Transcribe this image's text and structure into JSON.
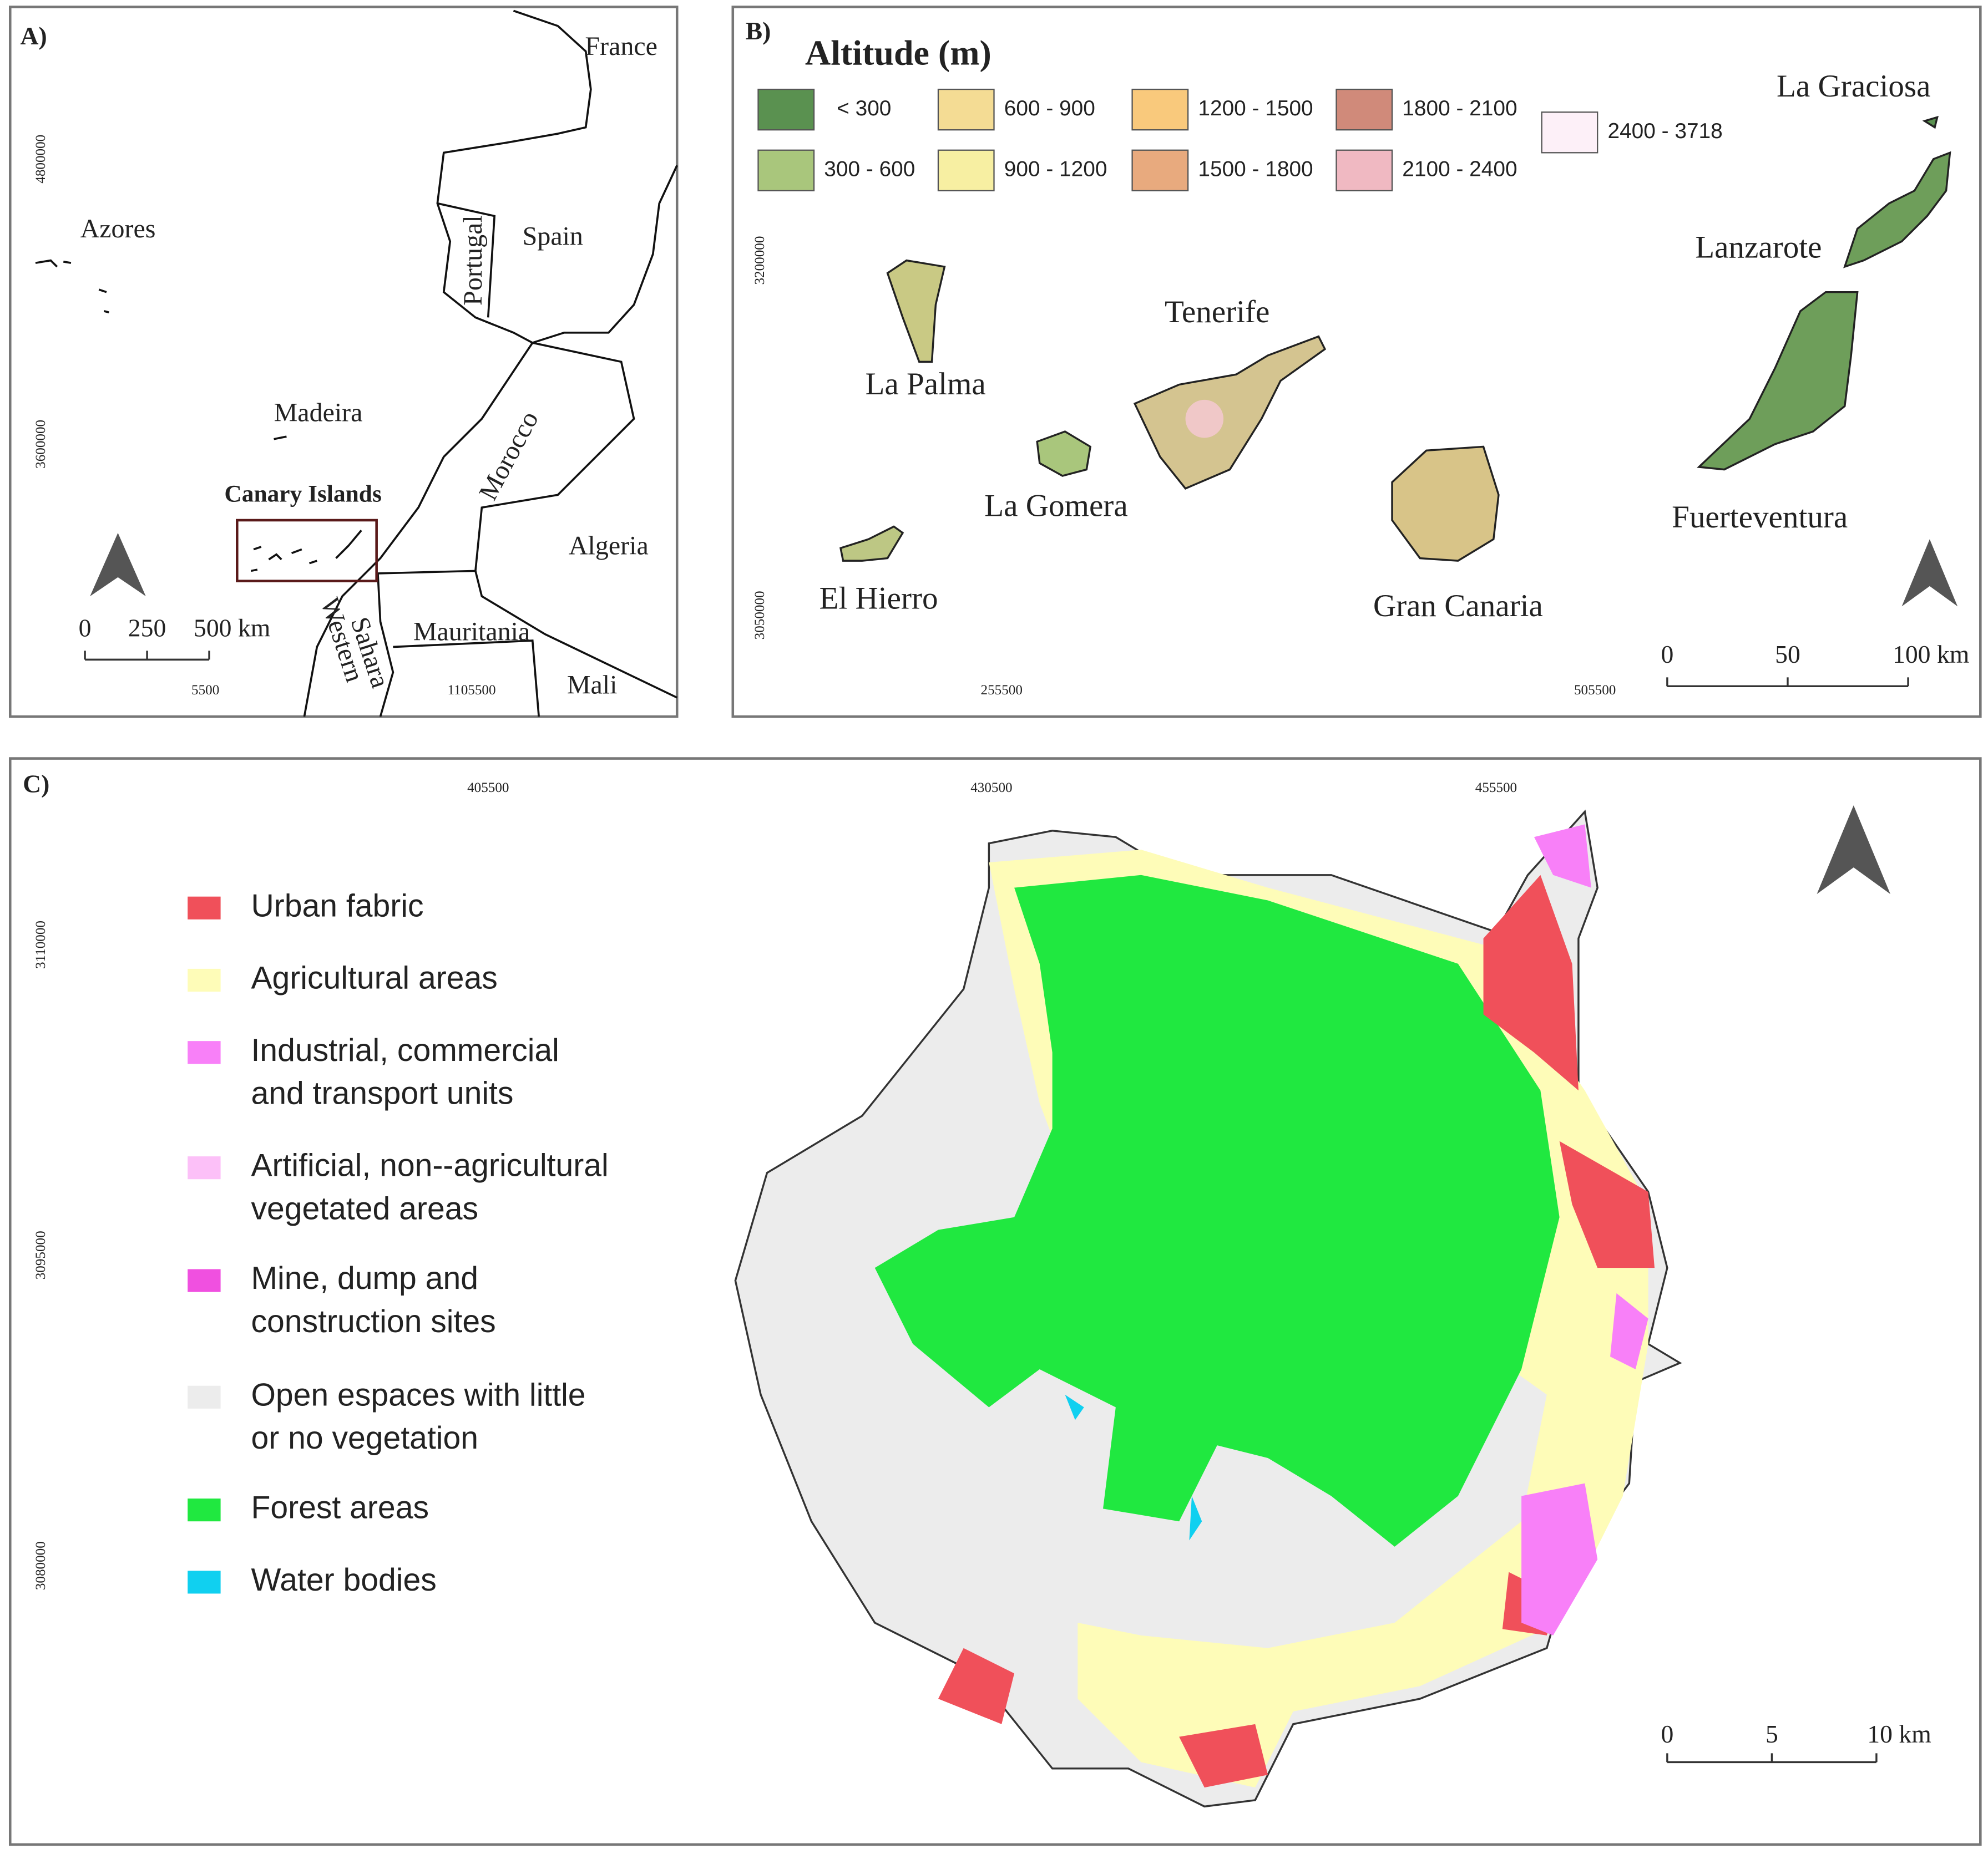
{
  "panel_a": {
    "label": "A)",
    "places": [
      "France",
      "Azores",
      "Spain",
      "Portugal",
      "Madeira",
      "Canary Islands",
      "Morocco",
      "Algeria",
      "Western",
      "Sahara",
      "Mauritania",
      "Mali"
    ],
    "coordinates": [
      "4800000",
      "3600000",
      "5500",
      "1105500"
    ],
    "scale": [
      "0",
      "250",
      "500 km"
    ]
  },
  "panel_b": {
    "label": "B)",
    "legend_title": "Altitude (m)",
    "legend": [
      {
        "label": "< 300",
        "color": "#5a9150"
      },
      {
        "label": "300 - 600",
        "color": "#a9c67c"
      },
      {
        "label": "600 - 900",
        "color": "#f4dc94"
      },
      {
        "label": "900 - 1200",
        "color": "#f7efa2"
      },
      {
        "label": "1200 - 1500",
        "color": "#f9c97c"
      },
      {
        "label": "1500 - 1800",
        "color": "#e8aa7e"
      },
      {
        "label": "1800 - 2100",
        "color": "#d08a7a"
      },
      {
        "label": "2100 - 2400",
        "color": "#f0b9c2"
      },
      {
        "label": "2400 - 3718",
        "color": "#fdf0f8"
      }
    ],
    "islands": [
      "La Graciosa",
      "Lanzarote",
      "Tenerife",
      "La Palma",
      "La Gomera",
      "Fuerteventura",
      "El Hierro",
      "Gran Canaria"
    ],
    "coordinates": [
      "3200000",
      "3050000",
      "255500",
      "505500"
    ],
    "scale": [
      "0",
      "50",
      "100 km"
    ]
  },
  "panel_c": {
    "label": "C)",
    "legend": [
      {
        "lines": [
          "Urban fabric"
        ],
        "color": "#f0505a"
      },
      {
        "lines": [
          "Agricultural areas"
        ],
        "color": "#fefcb8"
      },
      {
        "lines": [
          "Industrial, commercial",
          "and transport units"
        ],
        "color": "#f880f8"
      },
      {
        "lines": [
          "Artificial, non--agricultural",
          "vegetated areas"
        ],
        "color": "#fcc0f8"
      },
      {
        "lines": [
          "Mine, dump and",
          "construction sites"
        ],
        "color": "#f050e0"
      },
      {
        "lines": [
          "Open espaces with little",
          "or no vegetation"
        ],
        "color": "#ececec"
      },
      {
        "lines": [
          "Forest areas"
        ],
        "color": "#20e840"
      },
      {
        "lines": [
          "Water bodies"
        ],
        "color": "#10d0f0"
      }
    ],
    "coordinates": [
      "405500",
      "430500",
      "455500",
      "3110000",
      "3095000",
      "3080000"
    ],
    "scale": [
      "0",
      "5",
      "10 km"
    ]
  }
}
